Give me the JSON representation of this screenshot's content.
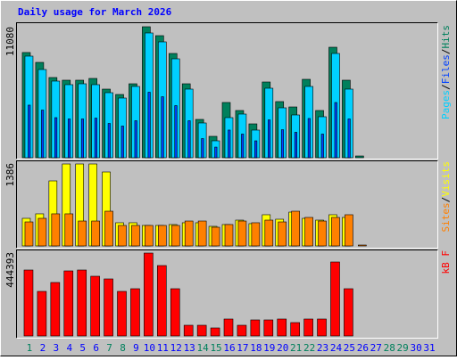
{
  "chart_data": [
    {
      "type": "bar",
      "title": "Daily usage for March 2026",
      "ylim": [
        0,
        11080
      ],
      "yticks": [
        11080
      ],
      "legend_separator": "/",
      "series": [
        {
          "name": "Hits",
          "color": "#00805c",
          "values": [
            8900,
            8065,
            6784,
            6558,
            6558,
            6708,
            5804,
            5351,
            6256,
            11080,
            10326,
            8819,
            6256,
            3241,
            1809,
            4673,
            3995,
            2864,
            6407,
            4749,
            4296,
            6633,
            3995,
            9346,
            6558,
            150,
            0,
            0,
            0,
            0,
            0
          ]
        },
        {
          "name": "Files",
          "color": "#0040ff",
          "values": [
            4450,
            4030,
            3390,
            3280,
            3280,
            3350,
            2900,
            2680,
            3130,
            5540,
            5160,
            4410,
            3130,
            1620,
            900,
            2340,
            2000,
            1430,
            3200,
            2370,
            2150,
            3320,
            2000,
            4670,
            3280,
            0,
            0,
            0,
            0,
            0,
            0
          ]
        },
        {
          "name": "Pages",
          "color": "#00d0ff",
          "values": [
            8593,
            7462,
            6482,
            6181,
            6256,
            6181,
            5502,
            5050,
            6030,
            10553,
            9799,
            8367,
            5804,
            2940,
            1432,
            3392,
            3693,
            2337,
            5879,
            4221,
            3618,
            6030,
            3467,
            8819,
            5804,
            0,
            0,
            0,
            0,
            0,
            0
          ]
        }
      ]
    },
    {
      "type": "bar",
      "ylim": [
        0,
        1386
      ],
      "yticks": [
        1386
      ],
      "legend_separator": "/",
      "series": [
        {
          "name": "Visits",
          "color": "#ffff00",
          "values": [
            462,
            537,
            1088,
            1371,
            1371,
            1371,
            1237,
            388,
            388,
            343,
            343,
            358,
            388,
            388,
            328,
            358,
            432,
            373,
            522,
            447,
            566,
            462,
            432,
            522,
            477,
            0,
            0,
            0,
            0,
            0,
            0
          ]
        },
        {
          "name": "Sites",
          "color": "#ff8000",
          "values": [
            402,
            462,
            537,
            537,
            417,
            417,
            581,
            343,
            343,
            343,
            343,
            343,
            417,
            417,
            313,
            358,
            417,
            388,
            432,
            402,
            581,
            477,
            417,
            477,
            522,
            15,
            0,
            0,
            0,
            0,
            0
          ]
        }
      ]
    },
    {
      "type": "bar",
      "ylim": [
        0,
        444393
      ],
      "yticks": [
        444393
      ],
      "categories": [
        1,
        2,
        3,
        4,
        5,
        6,
        7,
        8,
        9,
        10,
        11,
        12,
        13,
        14,
        15,
        16,
        17,
        18,
        19,
        20,
        21,
        22,
        23,
        24,
        25,
        26,
        27,
        28,
        29,
        30,
        31
      ],
      "category_colors": [
        "#00805c",
        "#0000ff",
        "#0000ff",
        "#0000ff",
        "#0000ff",
        "#0000ff",
        "#00805c",
        "#00805c",
        "#0000ff",
        "#0000ff",
        "#0000ff",
        "#0000ff",
        "#0000ff",
        "#00805c",
        "#00805c",
        "#0000ff",
        "#0000ff",
        "#0000ff",
        "#0000ff",
        "#0000ff",
        "#00805c",
        "#00805c",
        "#0000ff",
        "#0000ff",
        "#0000ff",
        "#0000ff",
        "#0000ff",
        "#00805c",
        "#00805c",
        "#0000ff",
        "#0000ff"
      ],
      "series": [
        {
          "name": "kB F",
          "color": "#ff0000",
          "values": [
            349842,
            236380,
            283656,
            345115,
            349842,
            316749,
            302566,
            236380,
            250563,
            439667,
            373480,
            250563,
            56731,
            56731,
            42548,
            89824,
            56731,
            85097,
            85097,
            89824,
            70914,
            89824,
            89824,
            392391,
            250563,
            0,
            0,
            0,
            0,
            0,
            0
          ]
        }
      ]
    }
  ]
}
